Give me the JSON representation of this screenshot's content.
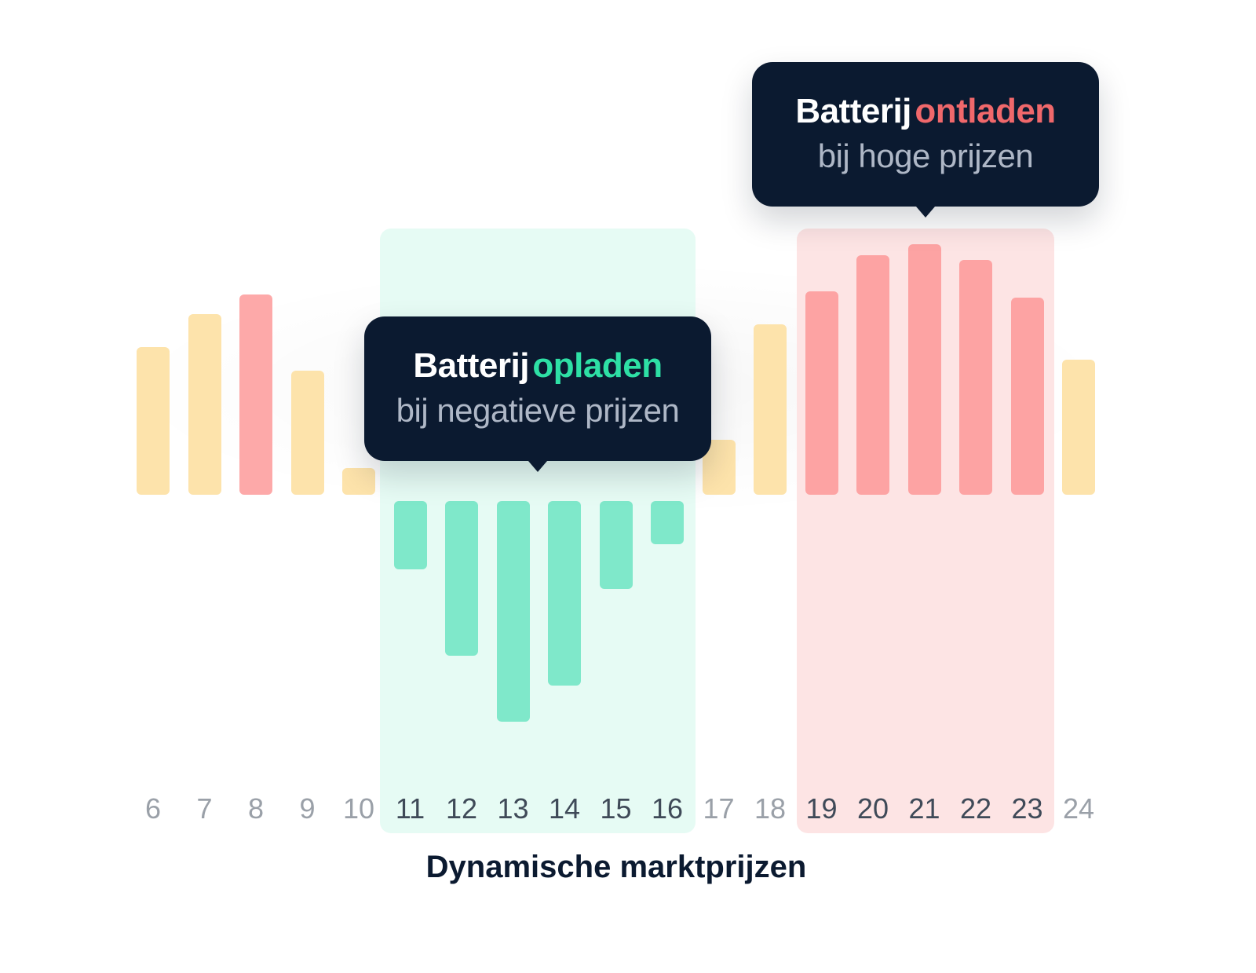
{
  "chart_data": {
    "type": "bar",
    "title": "",
    "xlabel": "Dynamische marktprijzen",
    "ylabel": "",
    "categories": [
      "6",
      "7",
      "8",
      "9",
      "10",
      "11",
      "12",
      "13",
      "14",
      "15",
      "16",
      "17",
      "18",
      "19",
      "20",
      "21",
      "22",
      "23",
      "24"
    ],
    "values": [
      188,
      230,
      255,
      158,
      34,
      -87,
      -197,
      -281,
      -235,
      -112,
      -55,
      70,
      217,
      259,
      305,
      319,
      299,
      251,
      172
    ],
    "value_units": "relative price (px-scaled, no y-axis shown)",
    "bar_colors": [
      "#fde3ab",
      "#fde3ab",
      "#fda9a9",
      "#fde3ab",
      "#fde3ab",
      "#7fe8ca",
      "#7fe8ca",
      "#7fe8ca",
      "#7fe8ca",
      "#7fe8ca",
      "#7fe8ca",
      "#fde3ab",
      "#fde3ab",
      "#fda3a3",
      "#fda3a3",
      "#fda3a3",
      "#fda3a3",
      "#fda3a3",
      "#fde3ab"
    ],
    "highlight_ranges": [
      {
        "name": "charge",
        "from": "11",
        "to": "16",
        "color": "#e6fbf4"
      },
      {
        "name": "discharge",
        "from": "19",
        "to": "23",
        "color": "#fde4e4"
      }
    ],
    "grid": false,
    "legend": null,
    "annotations": [
      {
        "target": "13",
        "title_prefix": "Batterij",
        "title_accent": "opladen",
        "accent_color": "#2ee0a5",
        "subtitle": "bij negatieve prijzen"
      },
      {
        "target": "21",
        "title_prefix": "Batterij",
        "title_accent": "ontladen",
        "accent_color": "#f0686b",
        "subtitle": "bij hoge prijzen"
      }
    ]
  },
  "tooltips": {
    "charge": {
      "prefix": "Batterij",
      "accent": "opladen",
      "subtitle": "bij negatieve prijzen"
    },
    "discharge": {
      "prefix": "Batterij",
      "accent": "ontladen",
      "subtitle": "bij hoge prijzen"
    }
  },
  "axis": {
    "ticks": [
      "6",
      "7",
      "8",
      "9",
      "10",
      "11",
      "12",
      "13",
      "14",
      "15",
      "16",
      "17",
      "18",
      "19",
      "20",
      "21",
      "22",
      "23",
      "24"
    ],
    "xlabel": "Dynamische marktprijzen"
  },
  "colors": {
    "neutral_bar": "#fde3ab",
    "high_bar": "#fda3a3",
    "negative_bar": "#7fe8ca",
    "tooltip_bg": "#0b1a30",
    "accent_green": "#2ee0a5",
    "accent_red": "#f0686b",
    "tick_muted": "#9aa0a8",
    "tick_active": "#3f4a58"
  }
}
